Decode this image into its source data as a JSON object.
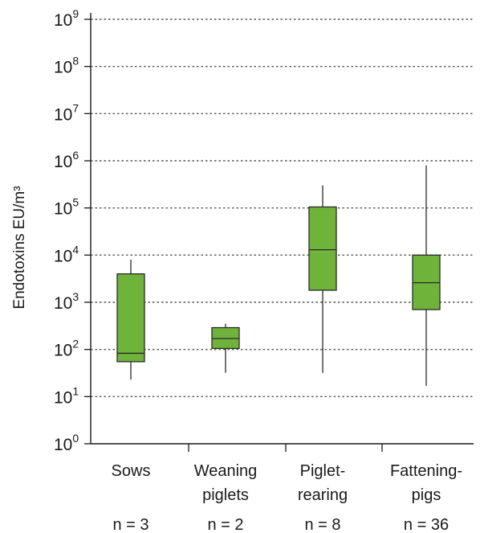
{
  "chart_data": {
    "type": "box",
    "ylabel": "Endotoxins EU/m³",
    "yscale": "log10",
    "ylim": [
      1,
      1000000000
    ],
    "y_ticks": [
      {
        "value": 1,
        "base": "10",
        "exp": "0"
      },
      {
        "value": 10,
        "base": "10",
        "exp": "1"
      },
      {
        "value": 100,
        "base": "10",
        "exp": "2"
      },
      {
        "value": 1000,
        "base": "10",
        "exp": "3"
      },
      {
        "value": 10000,
        "base": "10",
        "exp": "4"
      },
      {
        "value": 100000,
        "base": "10",
        "exp": "5"
      },
      {
        "value": 1000000,
        "base": "10",
        "exp": "6"
      },
      {
        "value": 10000000,
        "base": "10",
        "exp": "7"
      },
      {
        "value": 100000000,
        "base": "10",
        "exp": "8"
      },
      {
        "value": 1000000000,
        "base": "10",
        "exp": "9"
      }
    ],
    "grid": "horizontal dotted",
    "categories": [
      {
        "lines": [
          "Sows"
        ],
        "n": "n = 3"
      },
      {
        "lines": [
          "Weaning",
          "piglets"
        ],
        "n": "n = 2"
      },
      {
        "lines": [
          "Piglet-",
          "rearing"
        ],
        "n": "n = 8"
      },
      {
        "lines": [
          "Fattening-",
          "pigs"
        ],
        "n": "n = 36"
      }
    ],
    "boxes": [
      {
        "min": 23,
        "q1": 55,
        "median": 83,
        "q3": 4000,
        "max": 8000
      },
      {
        "min": 32,
        "q1": 105,
        "median": 170,
        "q3": 290,
        "max": 350
      },
      {
        "min": 32,
        "q1": 1800,
        "median": 13000,
        "q3": 105000,
        "max": 300000
      },
      {
        "min": 17,
        "q1": 700,
        "median": 2600,
        "q3": 10000,
        "max": 800000
      }
    ],
    "colors": {
      "box_fill": "#6fb33a",
      "box_stroke": "#2a2a2a",
      "axis": "#1a1a1a",
      "grid": "#555555"
    }
  }
}
